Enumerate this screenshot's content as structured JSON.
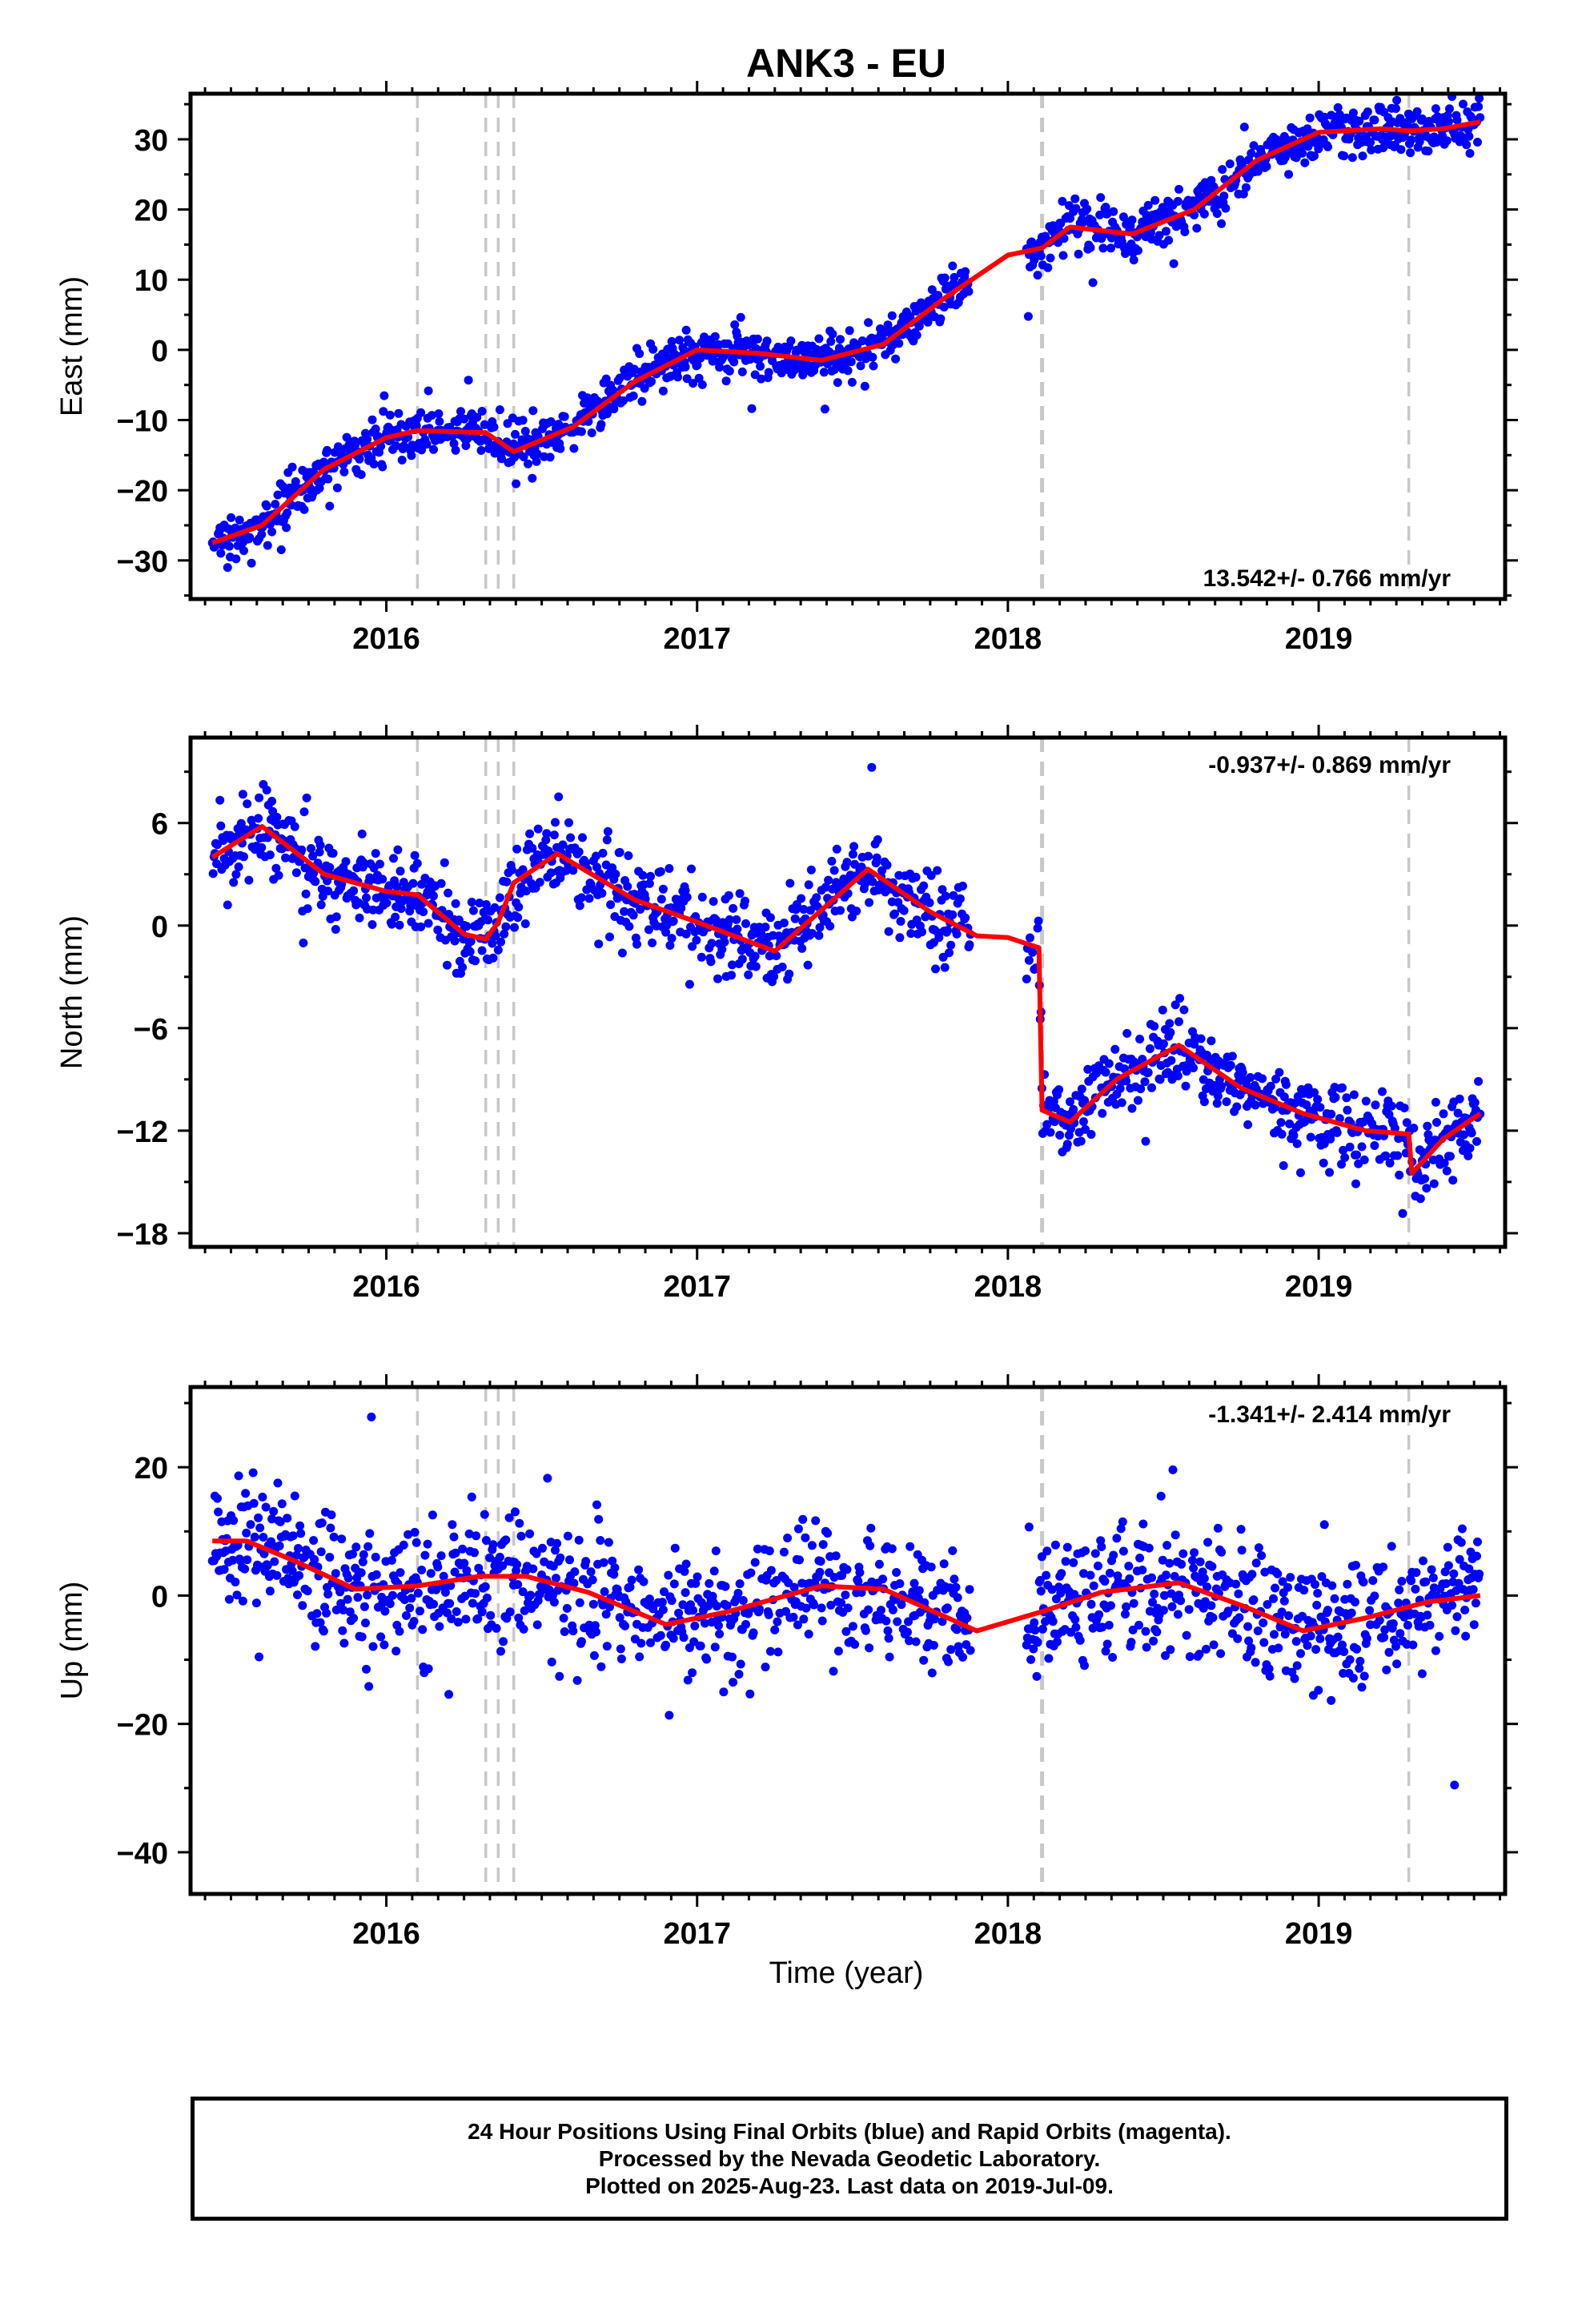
{
  "title": "ANK3 - EU",
  "xlabel": "Time (year)",
  "colors": {
    "points": "#0000ff",
    "fit": "#ff0000",
    "breaks": "#c8c8c8"
  },
  "caption": {
    "line1": "24 Hour Positions Using Final Orbits (blue) and Rapid Orbits (magenta).",
    "line2": "Processed by the Nevada Geodetic Laboratory.",
    "line3": "Plotted on 2025-Aug-23. Last data on 2019-Jul-09."
  },
  "chart_data": [
    {
      "type": "scatter",
      "component": "east",
      "ylabel": "East (mm)",
      "velocity": "13.542+/- 0.766 mm/yr",
      "velocity_position": "bottom-right",
      "xlim": [
        2015.37,
        2019.6
      ],
      "ylim": [
        -35.5,
        36.5
      ],
      "xticks": [
        2016,
        2017,
        2018,
        2019
      ],
      "yticks": [
        -30,
        -20,
        -10,
        0,
        10,
        20,
        30
      ],
      "breaks": [
        2016.1,
        2016.32,
        2016.36,
        2016.41,
        2018.11,
        2019.29
      ],
      "seasonal": {
        "amplitude": 2.5,
        "phase": 0.1,
        "semiannual": 0.8
      },
      "offsets": [
        {
          "t": 2016.1,
          "d": 1.0
        },
        {
          "t": 2016.36,
          "d": -2.5
        },
        {
          "t": 2018.11,
          "d": 4.5
        },
        {
          "t": 2019.29,
          "d": -1.5
        }
      ],
      "noise": 1.7,
      "fit": {
        "t": [
          2015.44,
          2015.6,
          2015.8,
          2016.0,
          2016.1,
          2016.32,
          2016.36,
          2016.41,
          2016.6,
          2016.8,
          2017.0,
          2017.2,
          2017.4,
          2017.6,
          2017.8,
          2018.0,
          2018.11,
          2018.2,
          2018.4,
          2018.6,
          2018.8,
          2019.0,
          2019.2,
          2019.29,
          2019.4,
          2019.52
        ],
        "y": [
          -27.5,
          -25.0,
          -17.0,
          -12.5,
          -11.5,
          -11.8,
          -13.0,
          -14.5,
          -11.0,
          -4.5,
          0.0,
          -0.5,
          -1.5,
          0.8,
          7.5,
          13.5,
          14.5,
          17.5,
          16.5,
          20.0,
          27.0,
          31.0,
          31.5,
          31.2,
          31.5,
          32.5
        ]
      }
    },
    {
      "type": "scatter",
      "component": "north",
      "ylabel": "North (mm)",
      "velocity": "-0.937+/- 0.869 mm/yr",
      "velocity_position": "top-right",
      "xlim": [
        2015.37,
        2019.6
      ],
      "ylim": [
        -18.8,
        11
      ],
      "xticks": [
        2016,
        2017,
        2018,
        2019
      ],
      "yticks": [
        -18,
        -12,
        -6,
        0,
        6
      ],
      "breaks": [
        2016.1,
        2016.32,
        2016.36,
        2016.41,
        2018.11,
        2019.29
      ],
      "seasonal": {
        "amplitude": 2.0,
        "phase": 0.35,
        "semiannual": 0.5
      },
      "offsets": [
        {
          "t": 2016.1,
          "d": -1.0
        },
        {
          "t": 2016.36,
          "d": 1.0
        },
        {
          "t": 2018.11,
          "d": -9.5
        },
        {
          "t": 2019.29,
          "d": -2.5
        }
      ],
      "noise": 1.2,
      "fit": {
        "t": [
          2015.44,
          2015.6,
          2015.8,
          2016.0,
          2016.1,
          2016.25,
          2016.32,
          2016.36,
          2016.41,
          2016.55,
          2016.8,
          2017.0,
          2017.25,
          2017.55,
          2017.75,
          2017.9,
          2018.0,
          2018.1,
          2018.11,
          2018.2,
          2018.35,
          2018.55,
          2018.75,
          2018.95,
          2019.15,
          2019.29,
          2019.3,
          2019.4,
          2019.52
        ],
        "y": [
          4.0,
          5.8,
          3.0,
          2.0,
          1.8,
          -0.5,
          -0.8,
          0.2,
          2.5,
          4.2,
          1.5,
          0.2,
          -1.5,
          3.3,
          0.8,
          -0.6,
          -0.7,
          -1.3,
          -10.8,
          -11.5,
          -9.0,
          -7.0,
          -9.5,
          -11.0,
          -12.0,
          -12.2,
          -14.5,
          -12.5,
          -11.0
        ]
      }
    },
    {
      "type": "scatter",
      "component": "up",
      "ylabel": "Up (mm)",
      "velocity": "-1.341+/- 2.414 mm/yr",
      "velocity_position": "top-right",
      "xlim": [
        2015.37,
        2019.6
      ],
      "ylim": [
        -46.5,
        32.5
      ],
      "xticks": [
        2016,
        2017,
        2018,
        2019
      ],
      "yticks": [
        -40,
        -20,
        0,
        20
      ],
      "breaks": [
        2016.1,
        2016.32,
        2016.36,
        2016.41,
        2018.11,
        2019.29
      ],
      "seasonal": {
        "amplitude": 4.5,
        "phase": 0.0,
        "semiannual": 0.0
      },
      "offsets": [],
      "noise": 5.0,
      "fit": {
        "t": [
          2015.44,
          2015.55,
          2015.7,
          2015.9,
          2016.1,
          2016.3,
          2016.45,
          2016.65,
          2016.9,
          2017.1,
          2017.4,
          2017.6,
          2017.9,
          2018.11,
          2018.3,
          2018.55,
          2018.75,
          2018.95,
          2019.15,
          2019.35,
          2019.52
        ],
        "y": [
          8.5,
          8.5,
          5.5,
          1.0,
          1.5,
          3.0,
          3.0,
          0.5,
          -4.5,
          -2.5,
          1.5,
          1.0,
          -5.5,
          -2.5,
          0.5,
          2.0,
          -1.5,
          -5.5,
          -3.5,
          -1.0,
          0.0
        ]
      }
    }
  ]
}
